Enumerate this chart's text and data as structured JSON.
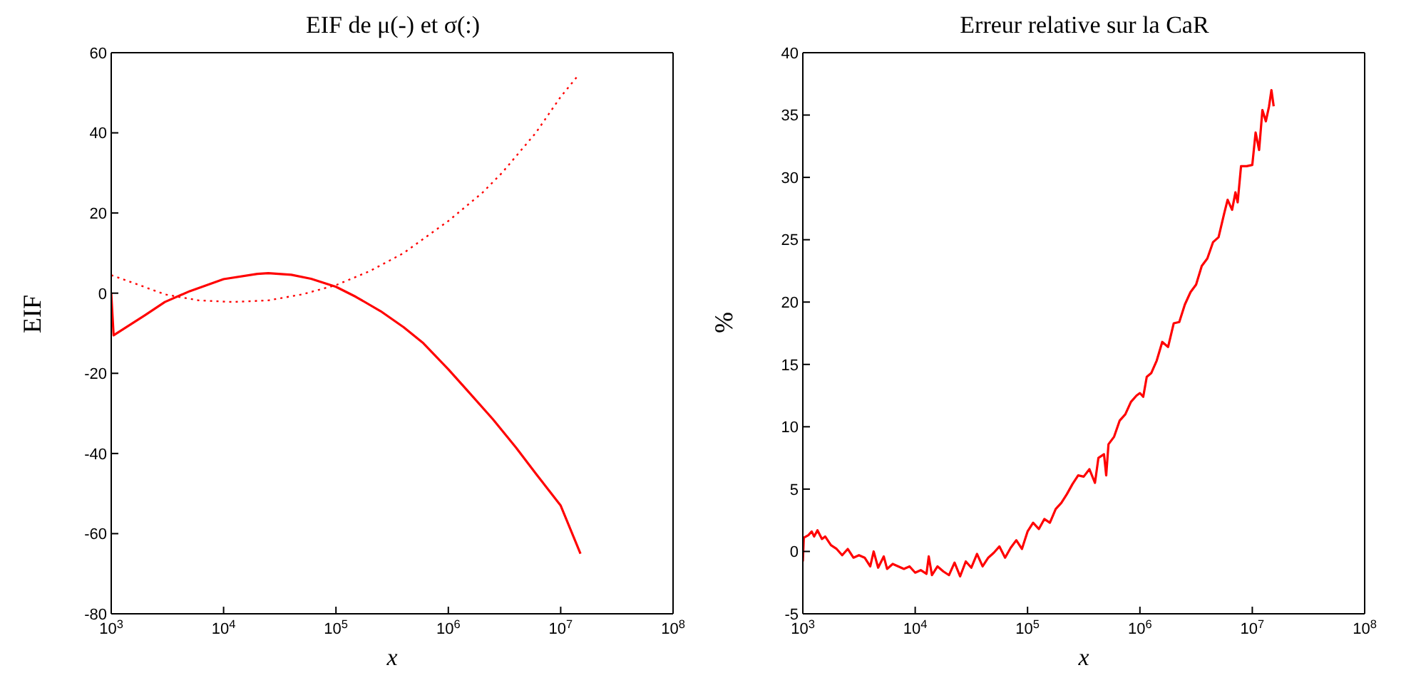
{
  "chart_data": [
    {
      "type": "line",
      "title": "EIF de μ(-) et σ(:)",
      "xlabel": "x",
      "ylabel": "EIF",
      "log": "x",
      "grid": false,
      "legend": false,
      "marker": "none",
      "xlim": [
        1000,
        100000000
      ],
      "xticks": [
        {
          "value": 1000,
          "label": "10$^{3}$"
        },
        {
          "value": 10000,
          "label": "10$^{4}$"
        },
        {
          "value": 100000,
          "label": "10$^{5}$"
        },
        {
          "value": 1000000,
          "label": "10$^{6}$"
        },
        {
          "value": 10000000,
          "label": "10$^{7}$"
        },
        {
          "value": 100000000,
          "label": "10$^{8}$"
        }
      ],
      "ylim": [
        -80,
        60
      ],
      "yticks": [
        -80,
        -60,
        -40,
        -20,
        0,
        20,
        40,
        60
      ],
      "series": [
        {
          "color": "#ff0000",
          "line_style": "solid",
          "x": [
            1000,
            1050,
            2000,
            3000,
            5000,
            10000,
            20000,
            25000,
            40000,
            60000,
            100000,
            150000,
            250000,
            400000,
            600000,
            1000000,
            1500000,
            2500000,
            4000000,
            6000000,
            10000000,
            15000000
          ],
          "values": [
            0,
            -10.5,
            -5.5,
            -2.2,
            0.5,
            3.5,
            4.8,
            5,
            4.6,
            3.6,
            1.6,
            -0.9,
            -4.5,
            -8.5,
            -12.5,
            -19,
            -24.5,
            -31.5,
            -38.5,
            -45,
            -53,
            -65
          ]
        },
        {
          "color": "#ff0000",
          "line_style": "dotted",
          "x": [
            1000,
            2000,
            3000,
            6000,
            12000,
            25000,
            50000,
            100000,
            200000,
            400000,
            1000000,
            2000000,
            3000000,
            6000000,
            10000000,
            14000000
          ],
          "values": [
            4.5,
            1.5,
            -0.3,
            -1.8,
            -2.2,
            -1.8,
            -0.3,
            2,
            5.5,
            10,
            18,
            25,
            30,
            40,
            49,
            54
          ]
        }
      ]
    },
    {
      "type": "line",
      "title": "Erreur relative sur la CaR",
      "xlabel": "x",
      "ylabel": "%",
      "log": "x",
      "grid": false,
      "legend": false,
      "marker": "none",
      "xlim": [
        1000,
        100000000
      ],
      "xticks": [
        {
          "value": 1000,
          "label": "10$^{3}$"
        },
        {
          "value": 10000,
          "label": "10$^{4}$"
        },
        {
          "value": 100000,
          "label": "10$^{5}$"
        },
        {
          "value": 1000000,
          "label": "10$^{6}$"
        },
        {
          "value": 10000000,
          "label": "10$^{7}$"
        },
        {
          "value": 100000000,
          "label": "10$^{8}$"
        }
      ],
      "ylim": [
        -5,
        40
      ],
      "yticks": [
        -5,
        0,
        5,
        10,
        15,
        20,
        25,
        30,
        35,
        40
      ],
      "series": [
        {
          "color": "#ff0000",
          "line_style": "solid",
          "x": [
            1000,
            1020,
            1120,
            1200,
            1260,
            1350,
            1480,
            1580,
            1780,
            2000,
            2240,
            2510,
            2820,
            3160,
            3550,
            3980,
            4270,
            4680,
            5250,
            5620,
            6310,
            7080,
            7940,
            8910,
            10000,
            11200,
            12600,
            13200,
            14100,
            15800,
            17800,
            20000,
            22400,
            25100,
            28200,
            31600,
            35500,
            39800,
            44700,
            50100,
            56200,
            63100,
            70800,
            79400,
            89100,
            100000,
            112000,
            126000,
            141000,
            158000,
            178000,
            200000,
            224000,
            251000,
            282000,
            316000,
            355000,
            398000,
            427000,
            479000,
            501000,
            525000,
            589000,
            661000,
            741000,
            832000,
            933000,
            1000000,
            1070000,
            1150000,
            1260000,
            1410000,
            1580000,
            1780000,
            2000000,
            2240000,
            2510000,
            2820000,
            3160000,
            3550000,
            3980000,
            4470000,
            5010000,
            5620000,
            6030000,
            6610000,
            7080000,
            7410000,
            7940000,
            8910000,
            10000000,
            10700000,
            11500000,
            12300000,
            13200000,
            14100000,
            14800000,
            15500000
          ],
          "values": [
            -0.8,
            1.1,
            1.3,
            1.6,
            1.2,
            1.7,
            1.0,
            1.2,
            0.5,
            0.2,
            -0.3,
            0.2,
            -0.5,
            -0.3,
            -0.5,
            -1.2,
            0,
            -1.3,
            -0.4,
            -1.4,
            -1.0,
            -1.2,
            -1.4,
            -1.2,
            -1.7,
            -1.5,
            -1.8,
            -0.4,
            -1.9,
            -1.2,
            -1.6,
            -1.9,
            -0.9,
            -2.0,
            -0.8,
            -1.3,
            -0.2,
            -1.2,
            -0.5,
            -0.1,
            0.4,
            -0.5,
            0.3,
            0.9,
            0.2,
            1.6,
            2.3,
            1.8,
            2.6,
            2.3,
            3.4,
            3.9,
            4.6,
            5.4,
            6.1,
            6.0,
            6.6,
            5.5,
            7.5,
            7.8,
            6.1,
            8.6,
            9.2,
            10.5,
            11.0,
            12.0,
            12.5,
            12.7,
            12.4,
            14.0,
            14.3,
            15.3,
            16.8,
            16.4,
            18.3,
            18.4,
            19.8,
            20.8,
            21.4,
            22.9,
            23.5,
            24.8,
            25.2,
            27.1,
            28.2,
            27.4,
            28.8,
            28.0,
            30.9,
            30.9,
            31.0,
            33.6,
            32.2,
            35.4,
            34.5,
            35.7,
            37.0,
            35.7
          ]
        }
      ]
    }
  ]
}
